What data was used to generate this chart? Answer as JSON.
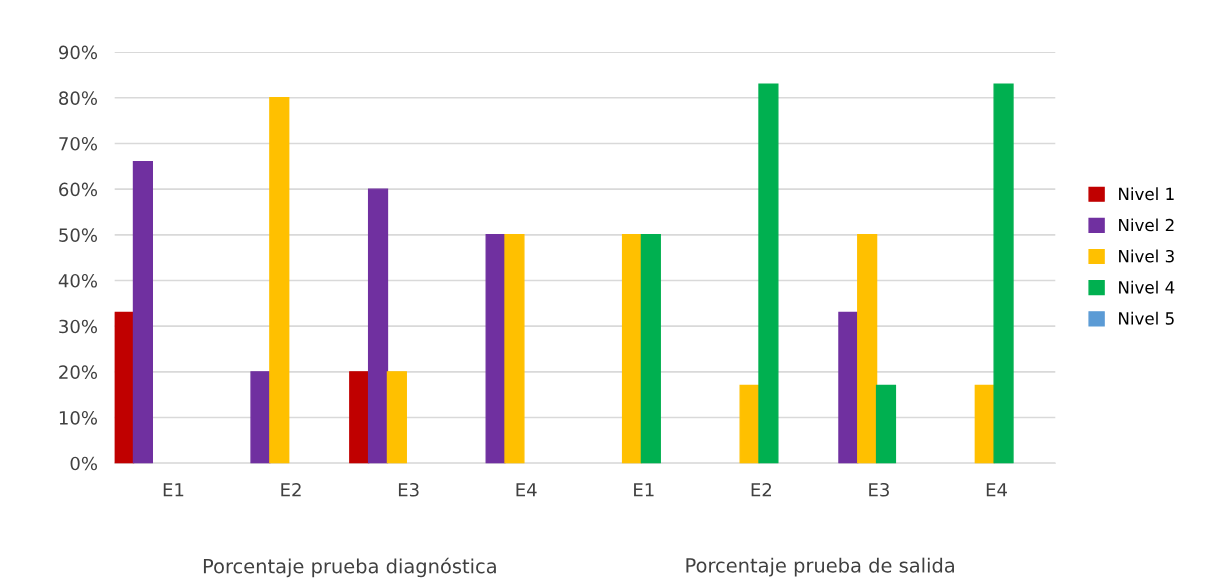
{
  "chart_data": {
    "type": "bar",
    "categories": [
      "E1",
      "E2",
      "E3",
      "E4",
      "E1",
      "E2",
      "E3",
      "E4"
    ],
    "series": [
      {
        "name": "Nivel 1",
        "color": "#c00000",
        "values": [
          33,
          null,
          20,
          null,
          null,
          null,
          null,
          null
        ]
      },
      {
        "name": "Nivel 2",
        "color": "#7030a0",
        "values": [
          66,
          20,
          60,
          50,
          null,
          null,
          33,
          null
        ]
      },
      {
        "name": "Nivel 3",
        "color": "#ffc000",
        "values": [
          null,
          80,
          20,
          50,
          50,
          17,
          50,
          17
        ]
      },
      {
        "name": "Nivel 4",
        "color": "#00b050",
        "values": [
          null,
          null,
          null,
          null,
          50,
          83,
          17,
          83
        ]
      },
      {
        "name": "Nivel 5",
        "color": "#5b9bd5",
        "values": [
          null,
          null,
          null,
          null,
          null,
          null,
          null,
          null
        ]
      }
    ],
    "ylim": [
      0,
      90
    ],
    "yticks": [
      {
        "value": 0,
        "label": "0%"
      },
      {
        "value": 10,
        "label": "10%"
      },
      {
        "value": 20,
        "label": "20%"
      },
      {
        "value": 30,
        "label": "30%"
      },
      {
        "value": 40,
        "label": "40%"
      },
      {
        "value": 50,
        "label": "50%"
      },
      {
        "value": 60,
        "label": "60%"
      },
      {
        "value": 70,
        "label": "70%"
      },
      {
        "value": 80,
        "label": "80%"
      },
      {
        "value": 90,
        "label": "90%"
      }
    ],
    "grid": "y",
    "legend": "right",
    "annotations": [
      "Porcentaje prueba diagnóstica",
      "Porcentaje prueba de salida"
    ]
  }
}
